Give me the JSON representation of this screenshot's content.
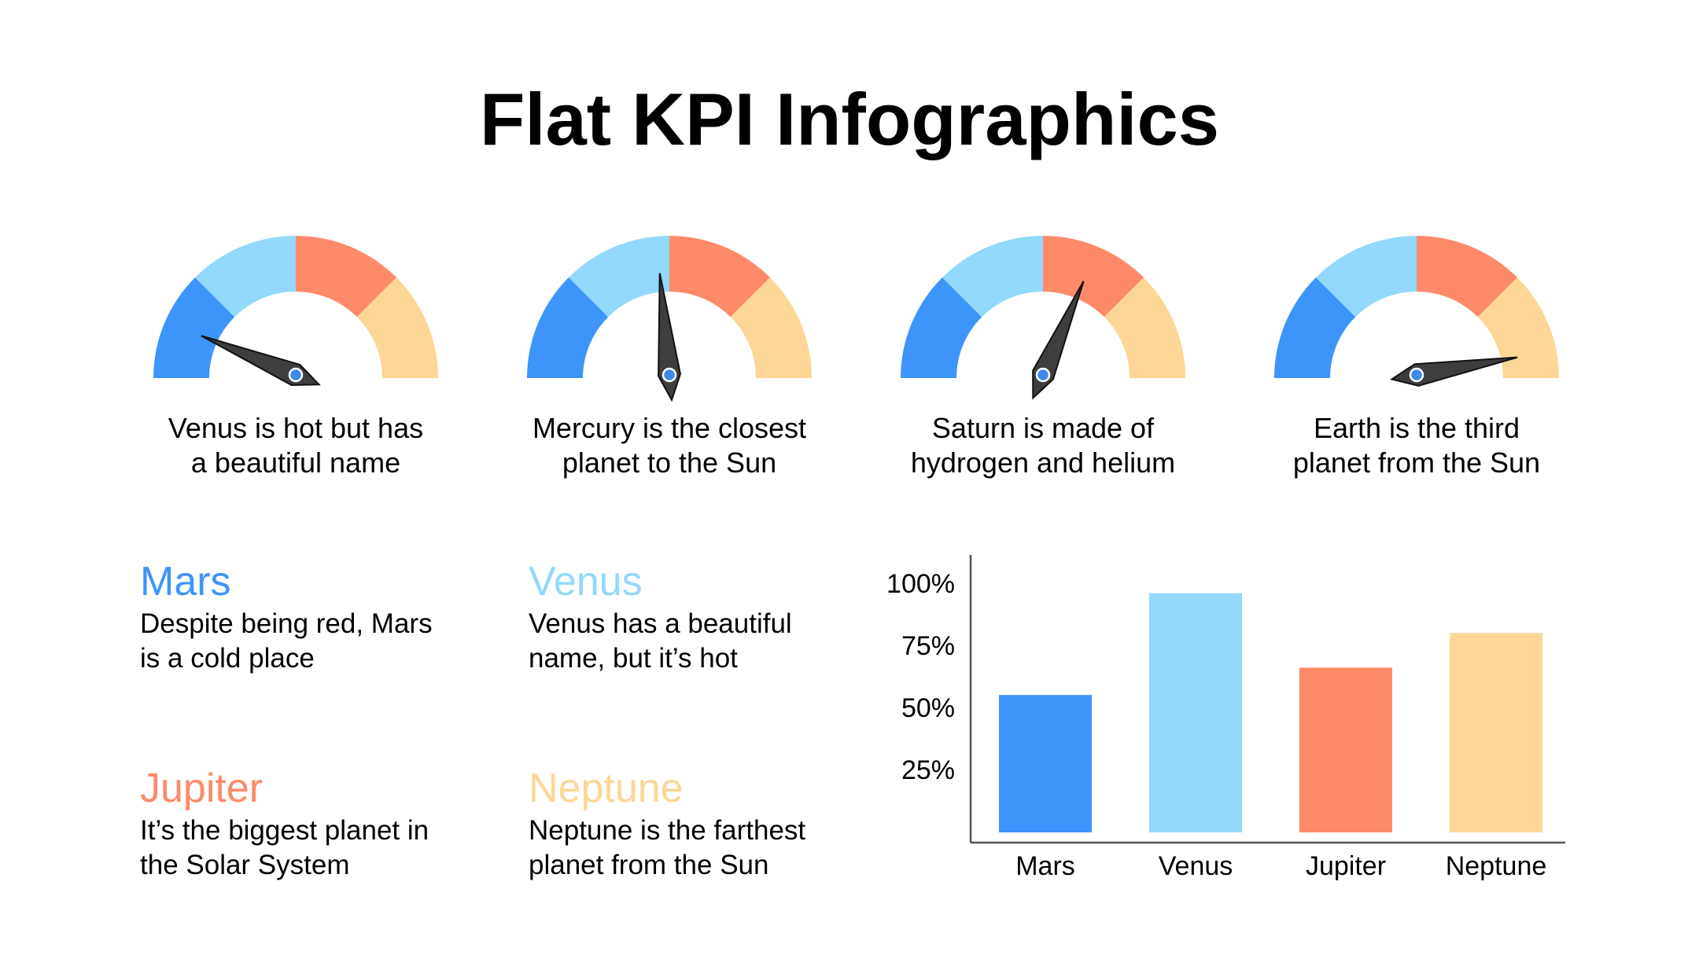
{
  "title": "Flat KPI Infographics",
  "colors": {
    "blue": "#3d94fa",
    "light_blue": "#93d8fd",
    "coral": "#fe8a6a",
    "peach": "#fed696",
    "needle": "#3e3e3e",
    "pivot": "#3d8ae8"
  },
  "gauges": [
    {
      "caption": "Venus is hot but has\na beautiful name",
      "value": 0.125
    },
    {
      "caption": "Mercury is the closest\nplanet to the Sun",
      "value": 0.47
    },
    {
      "caption": "Saturn is made of\nhydrogen and helium",
      "value": 0.63
    },
    {
      "caption": "Earth is the third\nplanet from the Sun",
      "value": 0.945
    }
  ],
  "planets": [
    {
      "name": "Mars",
      "description": "Despite being red, Mars\nis a cold place",
      "color": "#3d94fa"
    },
    {
      "name": "Venus",
      "description": "Venus has a beautiful\nname, but it’s hot",
      "color": "#93d8fd"
    },
    {
      "name": "Jupiter",
      "description": "It’s the biggest planet in\nthe Solar System",
      "color": "#fe8a6a"
    },
    {
      "name": "Neptune",
      "description": "Neptune is the farthest\nplanet from the Sun",
      "color": "#fed696"
    }
  ],
  "chart_data": {
    "type": "bar",
    "categories": [
      "Mars",
      "Venus",
      "Jupiter",
      "Neptune"
    ],
    "values": [
      55,
      96,
      66,
      80
    ],
    "colors": [
      "#3d94fa",
      "#93d8fd",
      "#fe8a6a",
      "#fed696"
    ],
    "yticks": [
      "25%",
      "50%",
      "75%",
      "100%"
    ],
    "ytick_values": [
      25,
      50,
      75,
      100
    ],
    "ylim": [
      0,
      100
    ],
    "title": "",
    "xlabel": "",
    "ylabel": "",
    "grid": false,
    "legend": "none"
  }
}
